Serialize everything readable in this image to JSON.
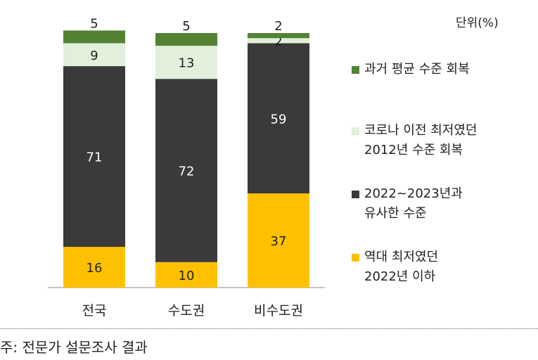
{
  "unit_label": "단위(%)",
  "footnote": "주: 전문가 설문조사 결과",
  "colors": {
    "past_avg": "#548235",
    "covid_low_2012": "#E2EFDA",
    "similar_2022_2023": "#3A3A3A",
    "record_low_2022": "#FFC000",
    "axis": "#888888"
  },
  "chart_data": {
    "type": "bar",
    "stacked": true,
    "categories": [
      "전국",
      "수도권",
      "비수도권"
    ],
    "series": [
      {
        "name": "역대 최저였던 2022년 이하",
        "values": [
          16,
          10,
          37
        ],
        "color": "#FFC000",
        "label_color": "#222222"
      },
      {
        "name": "2022~2023년과 유사한 수준",
        "values": [
          71,
          72,
          59
        ],
        "color": "#3A3A3A",
        "label_color": "#ffffff"
      },
      {
        "name": "코로나 이전 최저였던 2012년 수준 회복",
        "values": [
          9,
          13,
          2
        ],
        "color": "#E2EFDA",
        "label_color": "#222222"
      },
      {
        "name": "과거 평균 수준 회복",
        "values": [
          5,
          5,
          2
        ],
        "color": "#548235",
        "label_color": "#222222"
      }
    ],
    "ylim": [
      0,
      100
    ],
    "grid": false,
    "legend_position": "right"
  },
  "legend": [
    {
      "label": "과거 평균 수준 회복",
      "color": "#548235"
    },
    {
      "label": "코로나 이전 최저였던\n2012년 수준 회복",
      "color": "#E2EFDA"
    },
    {
      "label": "2022~2023년과\n유사한 수준",
      "color": "#3A3A3A"
    },
    {
      "label": "역대 최저였던\n2022년 이하",
      "color": "#FFC000"
    }
  ]
}
